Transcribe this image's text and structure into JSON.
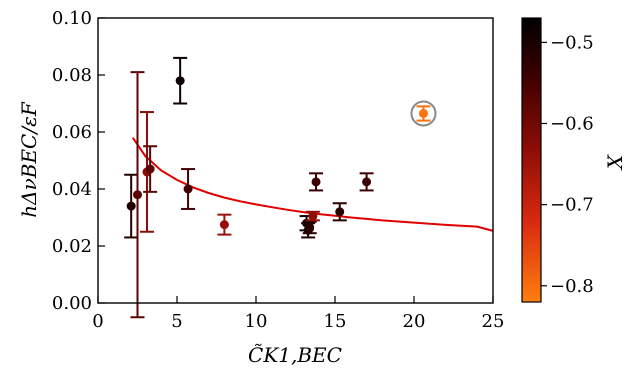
{
  "chart_data": {
    "type": "scatter",
    "title": "",
    "xlabel": "C̃K1,BEC",
    "ylabel": "hΔνBEC/εF",
    "xlim": [
      0,
      25
    ],
    "ylim": [
      0,
      0.1
    ],
    "x_ticks": [
      "0",
      "5",
      "10",
      "15",
      "20",
      "25"
    ],
    "y_ticks": [
      "0.00",
      "0.02",
      "0.04",
      "0.06",
      "0.08",
      "0.10"
    ],
    "grid": false,
    "colorbar": {
      "label": "X",
      "range": [
        -0.82,
        -0.47
      ],
      "ticks": [
        "−0.5",
        "−0.6",
        "−0.7",
        "−0.8"
      ],
      "tick_values": [
        -0.5,
        -0.6,
        -0.7,
        -0.8
      ],
      "colormap": [
        "#000000",
        "#3b0000",
        "#7a0a05",
        "#c51a0f",
        "#ff7f0e"
      ]
    },
    "points": [
      {
        "x": 2.1,
        "y": 0.034,
        "err": 0.011,
        "X": -0.52
      },
      {
        "x": 2.5,
        "y": 0.038,
        "err": 0.043,
        "X": -0.6
      },
      {
        "x": 3.1,
        "y": 0.046,
        "err": 0.021,
        "X": -0.66
      },
      {
        "x": 3.3,
        "y": 0.047,
        "err": 0.008,
        "X": -0.6
      },
      {
        "x": 5.2,
        "y": 0.078,
        "err": 0.008,
        "X": -0.49
      },
      {
        "x": 5.7,
        "y": 0.04,
        "err": 0.007,
        "X": -0.57
      },
      {
        "x": 8.0,
        "y": 0.0275,
        "err": 0.0035,
        "X": -0.68
      },
      {
        "x": 13.2,
        "y": 0.028,
        "err": 0.0025,
        "X": -0.49
      },
      {
        "x": 13.3,
        "y": 0.0255,
        "err": 0.0025,
        "X": -0.51
      },
      {
        "x": 13.4,
        "y": 0.0265,
        "err": 0.002,
        "X": -0.53
      },
      {
        "x": 13.6,
        "y": 0.0305,
        "err": 0.0015,
        "X": -0.67
      },
      {
        "x": 13.8,
        "y": 0.0425,
        "err": 0.003,
        "X": -0.56
      },
      {
        "x": 15.3,
        "y": 0.032,
        "err": 0.003,
        "X": -0.53
      },
      {
        "x": 17.0,
        "y": 0.0425,
        "err": 0.003,
        "X": -0.56
      },
      {
        "x": 20.6,
        "y": 0.0665,
        "err": 0.0025,
        "X": -0.81,
        "highlighted": true
      }
    ],
    "fit_curve": {
      "color": "#e00000",
      "x": [
        2.2,
        3,
        4,
        5,
        6,
        7,
        8,
        9,
        10,
        11,
        12,
        13,
        14,
        15,
        16,
        17,
        18,
        19,
        20,
        21,
        22,
        23,
        24,
        25
      ],
      "y": [
        0.058,
        0.0515,
        0.0465,
        0.0432,
        0.0406,
        0.0386,
        0.037,
        0.0357,
        0.0346,
        0.0336,
        0.0327,
        0.0319,
        0.0312,
        0.0306,
        0.03,
        0.0295,
        0.029,
        0.0286,
        0.0282,
        0.0278,
        0.0274,
        0.0271,
        0.0268,
        0.0253
      ]
    }
  }
}
